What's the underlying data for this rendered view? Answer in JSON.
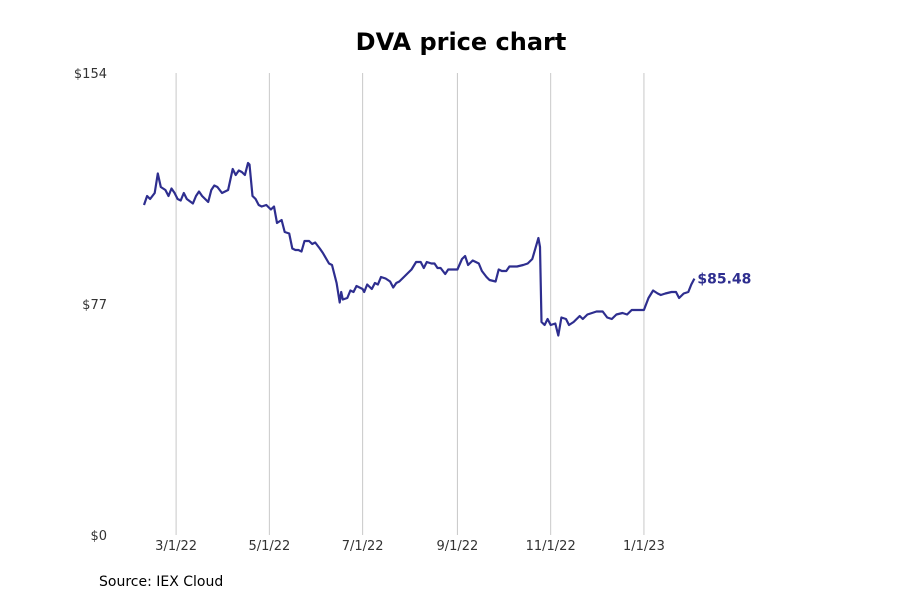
{
  "chart_data": {
    "type": "line",
    "title": "DVA price chart",
    "source": "Source: IEX Cloud",
    "xlabel": "",
    "ylabel": "",
    "x_ticks": [
      {
        "date": "2022-03-01",
        "label": "3/1/22"
      },
      {
        "date": "2022-05-01",
        "label": "5/1/22"
      },
      {
        "date": "2022-07-01",
        "label": "7/1/22"
      },
      {
        "date": "2022-09-01",
        "label": "9/1/22"
      },
      {
        "date": "2022-11-01",
        "label": "11/1/22"
      },
      {
        "date": "2023-01-01",
        "label": "1/1/23"
      }
    ],
    "y_ticks": [
      {
        "value": 0,
        "label": "$0"
      },
      {
        "value": 77,
        "label": "$77"
      },
      {
        "value": 154,
        "label": "$154"
      }
    ],
    "ylim": [
      0,
      154
    ],
    "xlim": [
      "2022-02-08",
      "2023-03-31"
    ],
    "grid": "vertical",
    "color": "#2e2e8f",
    "end_label": "$85.48",
    "series": [
      {
        "values": [
          [
            "2022-02-08",
            110.0
          ],
          [
            "2022-02-10",
            113.0
          ],
          [
            "2022-02-12",
            112.0
          ],
          [
            "2022-02-15",
            114.0
          ],
          [
            "2022-02-17",
            120.5
          ],
          [
            "2022-02-19",
            116.0
          ],
          [
            "2022-02-22",
            115.0
          ],
          [
            "2022-02-24",
            113.0
          ],
          [
            "2022-02-26",
            115.5
          ],
          [
            "2022-02-28",
            114.0
          ],
          [
            "2022-03-02",
            112.0
          ],
          [
            "2022-03-04",
            111.5
          ],
          [
            "2022-03-06",
            114.0
          ],
          [
            "2022-03-08",
            112.0
          ],
          [
            "2022-03-12",
            110.5
          ],
          [
            "2022-03-14",
            113.0
          ],
          [
            "2022-03-16",
            114.5
          ],
          [
            "2022-03-18",
            113.0
          ],
          [
            "2022-03-22",
            111.0
          ],
          [
            "2022-03-24",
            115.0
          ],
          [
            "2022-03-26",
            116.5
          ],
          [
            "2022-03-28",
            116.0
          ],
          [
            "2022-03-31",
            114.0
          ],
          [
            "2022-04-04",
            115.0
          ],
          [
            "2022-04-07",
            122.0
          ],
          [
            "2022-04-09",
            120.0
          ],
          [
            "2022-04-11",
            121.5
          ],
          [
            "2022-04-13",
            121.0
          ],
          [
            "2022-04-15",
            120.0
          ],
          [
            "2022-04-17",
            124.0
          ],
          [
            "2022-04-18",
            123.5
          ],
          [
            "2022-04-20",
            113.0
          ],
          [
            "2022-04-22",
            112.0
          ],
          [
            "2022-04-24",
            110.0
          ],
          [
            "2022-04-26",
            109.5
          ],
          [
            "2022-04-29",
            110.0
          ],
          [
            "2022-05-02",
            108.5
          ],
          [
            "2022-05-04",
            109.5
          ],
          [
            "2022-05-06",
            104.0
          ],
          [
            "2022-05-09",
            105.0
          ],
          [
            "2022-05-11",
            101.0
          ],
          [
            "2022-05-14",
            100.5
          ],
          [
            "2022-05-16",
            95.5
          ],
          [
            "2022-05-18",
            95.0
          ],
          [
            "2022-05-20",
            95.0
          ],
          [
            "2022-05-22",
            94.5
          ],
          [
            "2022-05-24",
            98.0
          ],
          [
            "2022-05-27",
            98.0
          ],
          [
            "2022-05-29",
            97.0
          ],
          [
            "2022-05-31",
            97.5
          ],
          [
            "2022-06-03",
            95.5
          ],
          [
            "2022-06-05",
            94.0
          ],
          [
            "2022-06-09",
            90.5
          ],
          [
            "2022-06-11",
            90.0
          ],
          [
            "2022-06-14",
            84.0
          ],
          [
            "2022-06-16",
            77.5
          ],
          [
            "2022-06-17",
            81.0
          ],
          [
            "2022-06-18",
            78.5
          ],
          [
            "2022-06-21",
            79.0
          ],
          [
            "2022-06-23",
            81.5
          ],
          [
            "2022-06-25",
            81.0
          ],
          [
            "2022-06-27",
            83.0
          ],
          [
            "2022-07-01",
            82.0
          ],
          [
            "2022-07-02",
            81.0
          ],
          [
            "2022-07-04",
            83.5
          ],
          [
            "2022-07-07",
            82.0
          ],
          [
            "2022-07-09",
            84.0
          ],
          [
            "2022-07-11",
            83.5
          ],
          [
            "2022-07-13",
            86.0
          ],
          [
            "2022-07-16",
            85.5
          ],
          [
            "2022-07-19",
            84.5
          ],
          [
            "2022-07-21",
            82.5
          ],
          [
            "2022-07-23",
            84.0
          ],
          [
            "2022-07-25",
            84.5
          ],
          [
            "2022-07-28",
            86.0
          ],
          [
            "2022-08-02",
            88.5
          ],
          [
            "2022-08-05",
            91.0
          ],
          [
            "2022-08-08",
            91.0
          ],
          [
            "2022-08-10",
            89.0
          ],
          [
            "2022-08-12",
            91.0
          ],
          [
            "2022-08-15",
            90.5
          ],
          [
            "2022-08-17",
            90.5
          ],
          [
            "2022-08-19",
            89.0
          ],
          [
            "2022-08-21",
            89.0
          ],
          [
            "2022-08-24",
            87.0
          ],
          [
            "2022-08-26",
            88.5
          ],
          [
            "2022-08-29",
            88.5
          ],
          [
            "2022-09-01",
            88.5
          ],
          [
            "2022-09-04",
            92.0
          ],
          [
            "2022-09-06",
            93.0
          ],
          [
            "2022-09-08",
            90.0
          ],
          [
            "2022-09-11",
            91.5
          ],
          [
            "2022-09-13",
            91.0
          ],
          [
            "2022-09-15",
            90.5
          ],
          [
            "2022-09-17",
            88.0
          ],
          [
            "2022-09-20",
            86.0
          ],
          [
            "2022-09-22",
            85.0
          ],
          [
            "2022-09-26",
            84.5
          ],
          [
            "2022-09-28",
            88.5
          ],
          [
            "2022-09-30",
            88.0
          ],
          [
            "2022-10-03",
            88.0
          ],
          [
            "2022-10-05",
            89.5
          ],
          [
            "2022-10-10",
            89.5
          ],
          [
            "2022-10-14",
            90.0
          ],
          [
            "2022-10-17",
            90.5
          ],
          [
            "2022-10-20",
            92.0
          ],
          [
            "2022-10-24",
            99.0
          ],
          [
            "2022-10-25",
            96.0
          ],
          [
            "2022-10-26",
            71.0
          ],
          [
            "2022-10-28",
            70.0
          ],
          [
            "2022-10-30",
            72.0
          ],
          [
            "2022-11-01",
            70.0
          ],
          [
            "2022-11-04",
            70.5
          ],
          [
            "2022-11-06",
            66.5
          ],
          [
            "2022-11-08",
            72.5
          ],
          [
            "2022-11-11",
            72.0
          ],
          [
            "2022-11-13",
            70.0
          ],
          [
            "2022-11-16",
            71.0
          ],
          [
            "2022-11-20",
            73.0
          ],
          [
            "2022-11-22",
            72.0
          ],
          [
            "2022-11-25",
            73.5
          ],
          [
            "2022-11-28",
            74.0
          ],
          [
            "2022-12-01",
            74.5
          ],
          [
            "2022-12-05",
            74.5
          ],
          [
            "2022-12-08",
            72.5
          ],
          [
            "2022-12-11",
            72.0
          ],
          [
            "2022-12-14",
            73.5
          ],
          [
            "2022-12-18",
            74.0
          ],
          [
            "2022-12-21",
            73.5
          ],
          [
            "2022-12-24",
            75.0
          ],
          [
            "2022-12-28",
            75.0
          ],
          [
            "2023-01-01",
            75.0
          ],
          [
            "2023-01-04",
            79.0
          ],
          [
            "2023-01-07",
            81.5
          ],
          [
            "2023-01-10",
            80.5
          ],
          [
            "2023-01-12",
            80.0
          ],
          [
            "2023-01-15",
            80.5
          ],
          [
            "2023-01-19",
            81.0
          ],
          [
            "2023-01-22",
            81.0
          ],
          [
            "2023-01-24",
            79.0
          ],
          [
            "2023-01-27",
            80.5
          ],
          [
            "2023-01-30",
            81.0
          ],
          [
            "2023-02-01",
            83.5
          ],
          [
            "2023-02-03",
            85.48
          ]
        ]
      }
    ]
  }
}
